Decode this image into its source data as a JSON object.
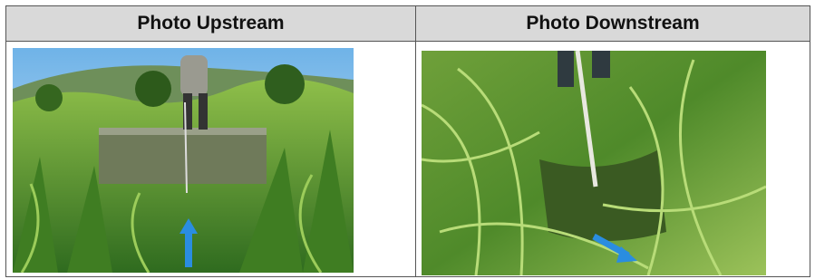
{
  "table": {
    "headers": [
      "Photo Upstream",
      "Photo Downstream"
    ]
  }
}
